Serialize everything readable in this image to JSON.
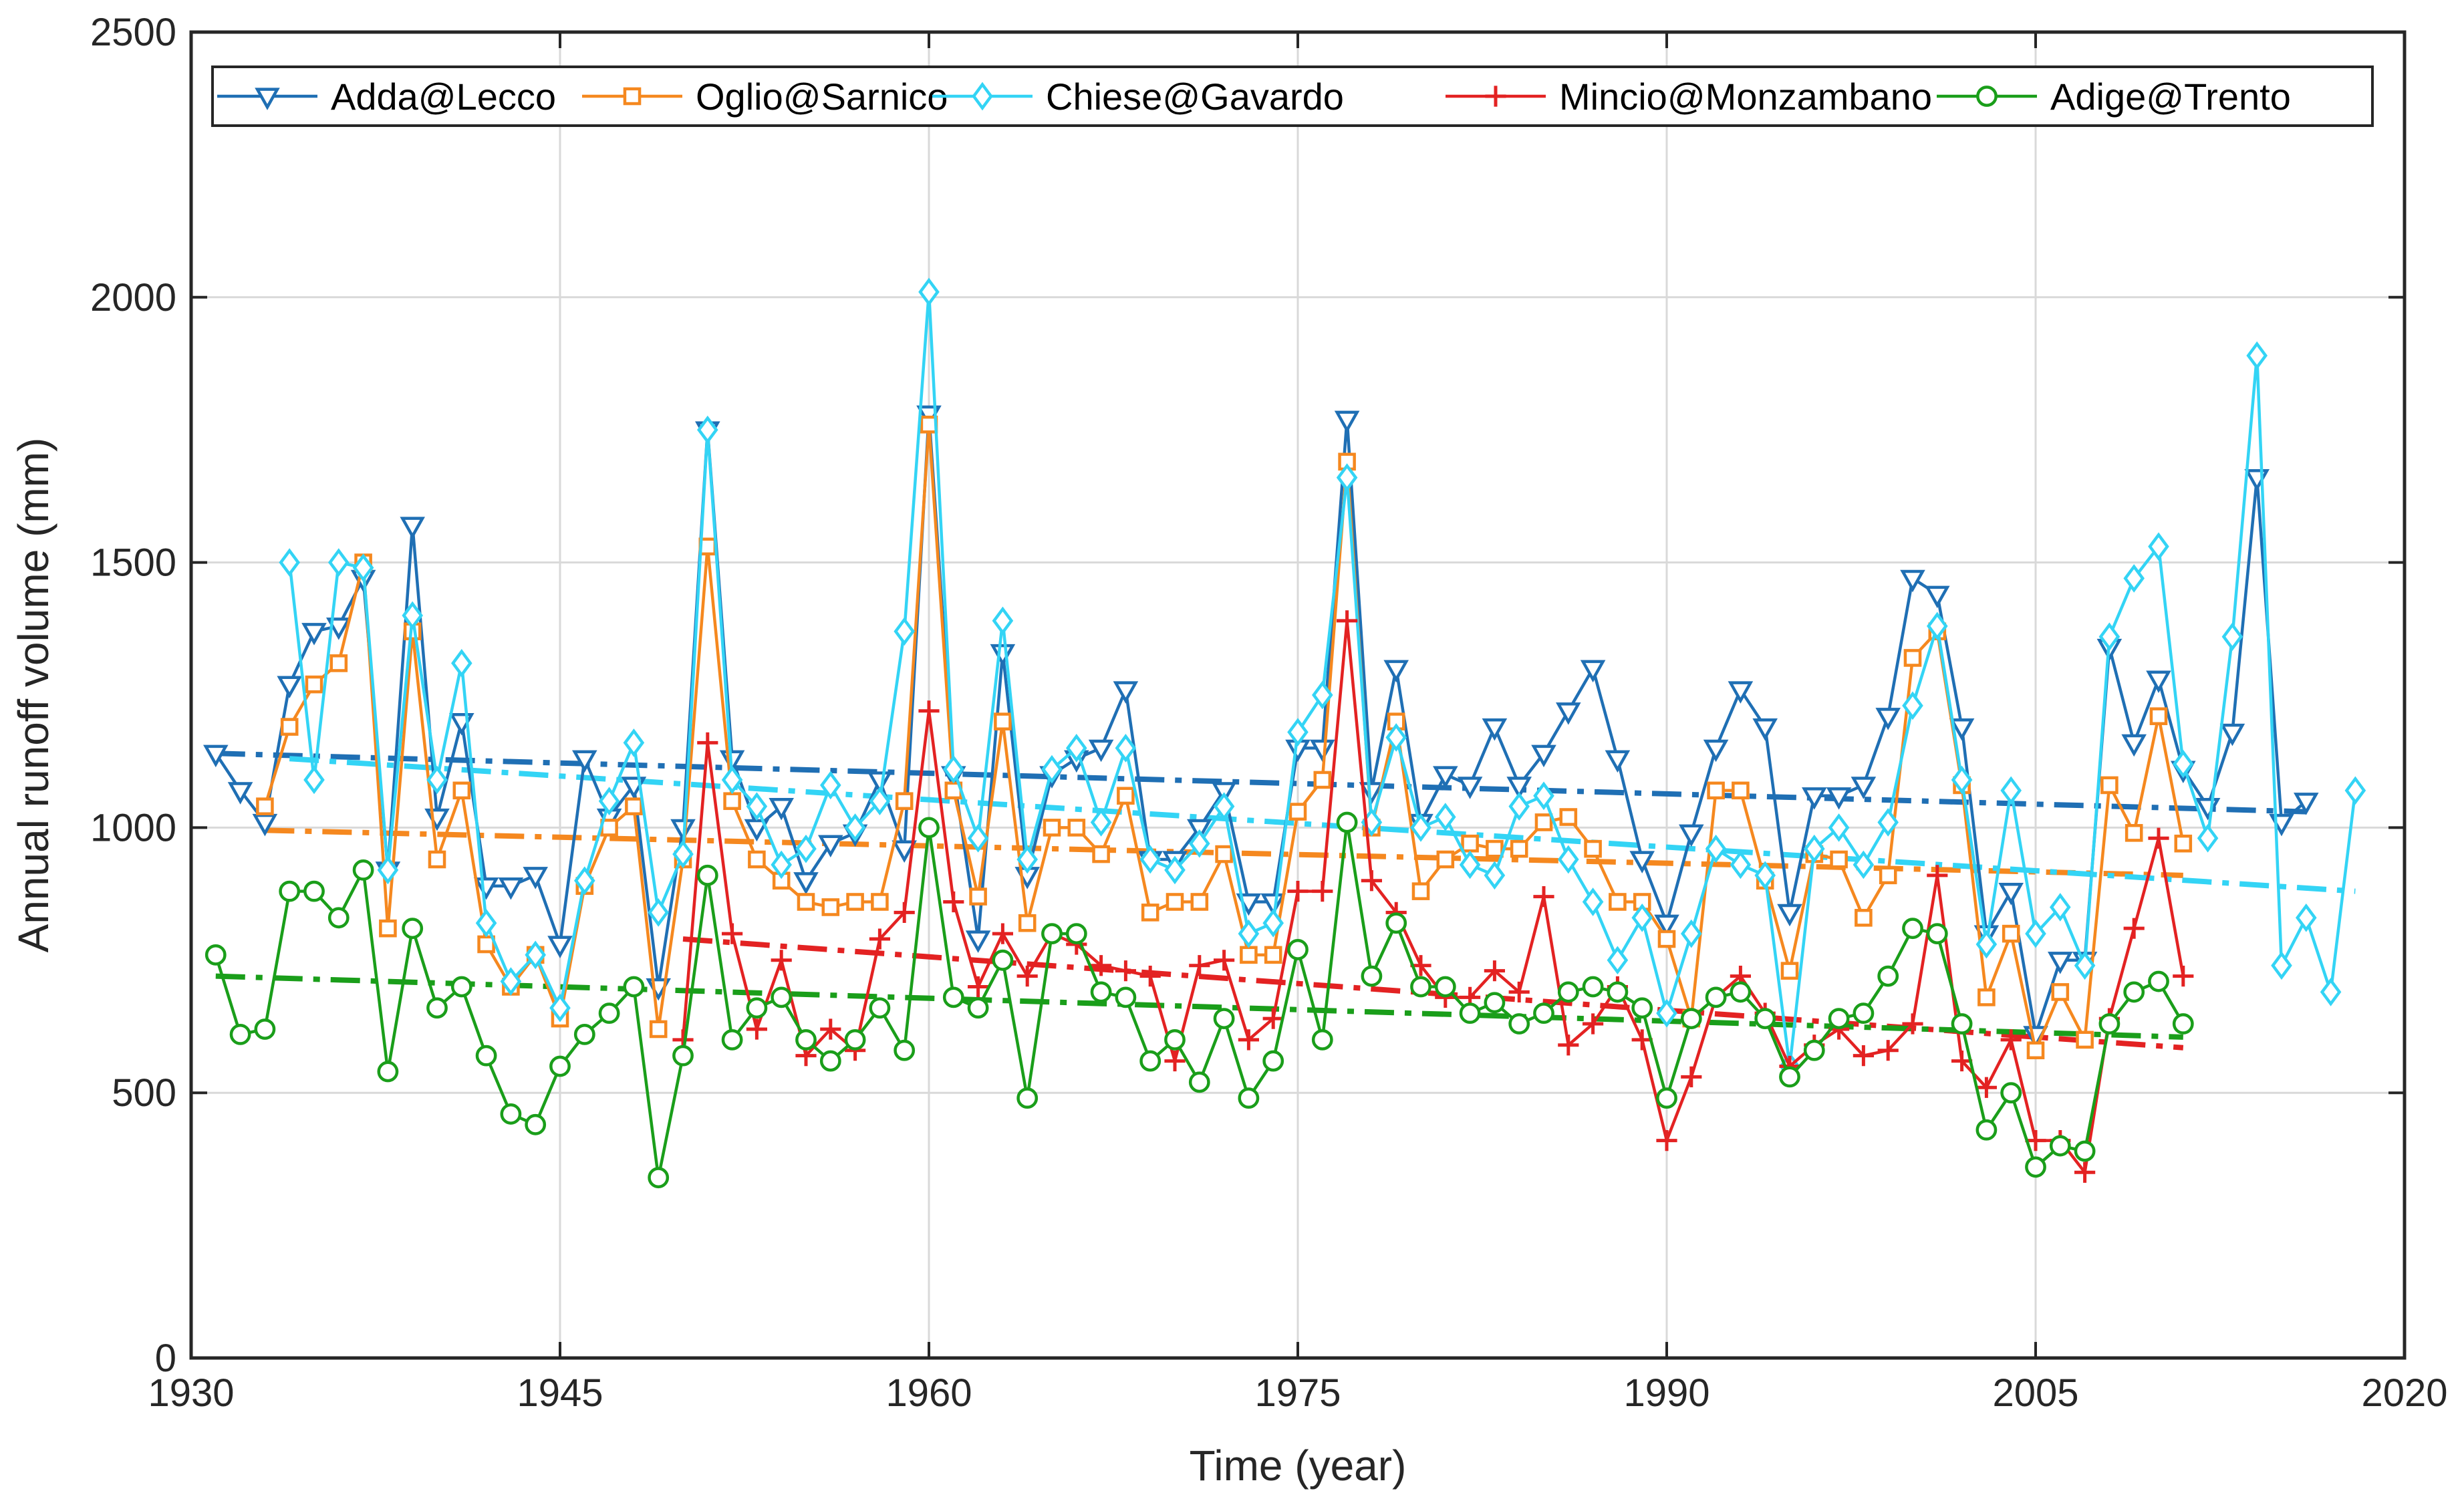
{
  "chart_data": {
    "type": "line",
    "title": "",
    "xlabel": "Time (year)",
    "ylabel": "Annual runoff volume (mm)",
    "xlim": [
      1930,
      2020
    ],
    "ylim": [
      0,
      2500
    ],
    "xticks": [
      1930,
      1945,
      1960,
      1975,
      1990,
      2005,
      2020
    ],
    "yticks": [
      0,
      500,
      1000,
      1500,
      2000,
      2500
    ],
    "xtick_labels": [
      "1930",
      "1945",
      "1960",
      "1975",
      "1990",
      "2005",
      "2020"
    ],
    "ytick_labels": [
      "0",
      "500",
      "1000",
      "1500",
      "2000",
      "2500"
    ],
    "grid": true,
    "legend_position": "top",
    "series": [
      {
        "name": "Adda@Lecco",
        "color": "#1f6fb4",
        "marker": "triangle-down",
        "x": [
          1931,
          1932,
          1933,
          1934,
          1935,
          1936,
          1937,
          1938,
          1939,
          1940,
          1941,
          1942,
          1943,
          1944,
          1945,
          1946,
          1947,
          1948,
          1949,
          1950,
          1951,
          1952,
          1953,
          1954,
          1955,
          1956,
          1957,
          1958,
          1959,
          1960,
          1961,
          1962,
          1963,
          1964,
          1965,
          1966,
          1967,
          1968,
          1969,
          1970,
          1971,
          1972,
          1973,
          1974,
          1975,
          1976,
          1977,
          1978,
          1979,
          1980,
          1981,
          1982,
          1983,
          1984,
          1985,
          1986,
          1987,
          1988,
          1989,
          1990,
          1991,
          1992,
          1993,
          1994,
          1995,
          1996,
          1997,
          1998,
          1999,
          2000,
          2001,
          2002,
          2003,
          2004,
          2005,
          2006,
          2007,
          2008,
          2009,
          2010,
          2011,
          2012,
          2013,
          2014,
          2015,
          2016
        ],
        "y": [
          1140,
          1070,
          1010,
          1270,
          1370,
          1380,
          1470,
          920,
          1570,
          1020,
          1200,
          890,
          890,
          910,
          780,
          1130,
          1020,
          1080,
          700,
          1000,
          1750,
          1130,
          1000,
          1040,
          900,
          970,
          990,
          1090,
          960,
          1780,
          1100,
          790,
          1330,
          910,
          1100,
          1130,
          1150,
          1260,
          940,
          940,
          1000,
          1070,
          860,
          860,
          1150,
          1150,
          1770,
          1070,
          1300,
          1010,
          1100,
          1080,
          1190,
          1080,
          1140,
          1220,
          1300,
          1130,
          940,
          820,
          990,
          1150,
          1260,
          1190,
          840,
          1060,
          1060,
          1080,
          1210,
          1470,
          1440,
          1190,
          800,
          880,
          610,
          750,
          750,
          1340,
          1160,
          1280,
          1110,
          1040,
          1180,
          1660,
          1010,
          1050
        ]
      },
      {
        "name": "Oglio@Sarnico",
        "color": "#f5881f",
        "marker": "square",
        "x": [
          1933,
          1934,
          1935,
          1936,
          1937,
          1938,
          1939,
          1940,
          1941,
          1942,
          1943,
          1944,
          1945,
          1946,
          1947,
          1948,
          1949,
          1950,
          1951,
          1952,
          1953,
          1954,
          1955,
          1956,
          1957,
          1958,
          1959,
          1960,
          1961,
          1962,
          1963,
          1964,
          1965,
          1966,
          1967,
          1968,
          1969,
          1970,
          1971,
          1972,
          1973,
          1974,
          1975,
          1976,
          1977,
          1978,
          1979,
          1980,
          1981,
          1982,
          1983,
          1984,
          1985,
          1986,
          1987,
          1988,
          1989,
          1990,
          1991,
          1992,
          1993,
          1994,
          1995,
          1996,
          1997,
          1998,
          1999,
          2000,
          2001,
          2002,
          2003,
          2004,
          2005,
          2006,
          2007,
          2008,
          2009,
          2010,
          2011
        ],
        "y": [
          1040,
          1190,
          1270,
          1310,
          1500,
          810,
          1370,
          940,
          1070,
          780,
          700,
          760,
          640,
          890,
          1000,
          1040,
          620,
          940,
          1530,
          1050,
          940,
          900,
          860,
          850,
          860,
          860,
          1050,
          1760,
          1070,
          870,
          1200,
          820,
          1000,
          1000,
          950,
          1060,
          840,
          860,
          860,
          950,
          760,
          760,
          1030,
          1090,
          1690,
          1000,
          1200,
          880,
          940,
          970,
          960,
          960,
          1010,
          1020,
          960,
          860,
          860,
          790,
          640,
          1070,
          1070,
          900,
          730,
          950,
          940,
          830,
          910,
          1320,
          1370,
          1080,
          680,
          800,
          580,
          690,
          600,
          1080,
          990,
          1210,
          970
        ]
      },
      {
        "name": "Chiese@Gavardo",
        "color": "#33d4f5",
        "marker": "diamond",
        "x": [
          1934,
          1935,
          1936,
          1937,
          1938,
          1939,
          1940,
          1941,
          1942,
          1943,
          1944,
          1945,
          1946,
          1947,
          1948,
          1949,
          1950,
          1951,
          1952,
          1953,
          1954,
          1955,
          1956,
          1957,
          1958,
          1959,
          1960,
          1961,
          1962,
          1963,
          1964,
          1965,
          1966,
          1967,
          1968,
          1969,
          1970,
          1971,
          1972,
          1973,
          1974,
          1975,
          1976,
          1977,
          1978,
          1979,
          1980,
          1981,
          1982,
          1983,
          1984,
          1985,
          1986,
          1987,
          1988,
          1989,
          1990,
          1991,
          1992,
          1993,
          1994,
          1995,
          1996,
          1997,
          1998,
          1999,
          2000,
          2001,
          2002,
          2003,
          2004,
          2005,
          2006,
          2007,
          2008,
          2009,
          2010,
          2011,
          2012,
          2013,
          2014,
          2015,
          2016,
          2017,
          2018
        ],
        "y": [
          1500,
          1090,
          1500,
          1490,
          920,
          1400,
          1090,
          1310,
          820,
          710,
          760,
          660,
          900,
          1050,
          1160,
          840,
          950,
          1750,
          1090,
          1040,
          930,
          960,
          1080,
          1000,
          1050,
          1370,
          2010,
          1110,
          980,
          1390,
          940,
          1110,
          1150,
          1010,
          1150,
          940,
          920,
          970,
          1040,
          800,
          820,
          1180,
          1250,
          1660,
          1010,
          1170,
          1000,
          1020,
          930,
          910,
          1040,
          1060,
          940,
          860,
          750,
          830,
          650,
          800,
          960,
          930,
          910,
          550,
          960,
          1000,
          930,
          1010,
          1230,
          1380,
          1090,
          780,
          1070,
          800,
          850,
          740,
          1360,
          1470,
          1530,
          1120,
          980,
          1360,
          1890,
          740,
          830,
          690,
          1070
        ]
      },
      {
        "name": "Mincio@Monzambano",
        "color": "#e32222",
        "marker": "plus",
        "x": [
          1950,
          1951,
          1952,
          1953,
          1954,
          1955,
          1956,
          1957,
          1958,
          1959,
          1960,
          1961,
          1962,
          1963,
          1964,
          1965,
          1966,
          1967,
          1968,
          1969,
          1970,
          1971,
          1972,
          1973,
          1974,
          1975,
          1976,
          1977,
          1978,
          1979,
          1980,
          1981,
          1982,
          1983,
          1984,
          1985,
          1986,
          1987,
          1988,
          1989,
          1990,
          1991,
          1992,
          1993,
          1994,
          1995,
          1996,
          1997,
          1998,
          1999,
          2000,
          2001,
          2002,
          2003,
          2004,
          2005,
          2006,
          2007,
          2008,
          2009,
          2010,
          2011
        ],
        "y": [
          600,
          1160,
          800,
          620,
          750,
          570,
          620,
          580,
          790,
          840,
          1220,
          860,
          700,
          800,
          720,
          800,
          780,
          740,
          730,
          720,
          560,
          740,
          750,
          600,
          640,
          880,
          880,
          1390,
          900,
          840,
          740,
          680,
          680,
          730,
          690,
          870,
          590,
          630,
          700,
          600,
          410,
          530,
          680,
          720,
          650,
          550,
          590,
          620,
          570,
          580,
          630,
          910,
          560,
          510,
          600,
          410,
          410,
          350,
          640,
          810,
          980,
          720
        ]
      },
      {
        "name": "Adige@Trento",
        "color": "#1a9e1a",
        "marker": "circle",
        "x": [
          1931,
          1932,
          1933,
          1934,
          1935,
          1936,
          1937,
          1938,
          1939,
          1940,
          1941,
          1942,
          1943,
          1944,
          1945,
          1946,
          1947,
          1948,
          1949,
          1950,
          1951,
          1952,
          1953,
          1954,
          1955,
          1956,
          1957,
          1958,
          1959,
          1960,
          1961,
          1962,
          1963,
          1964,
          1965,
          1966,
          1967,
          1968,
          1969,
          1970,
          1971,
          1972,
          1973,
          1974,
          1975,
          1976,
          1977,
          1978,
          1979,
          1980,
          1981,
          1982,
          1983,
          1984,
          1985,
          1986,
          1987,
          1988,
          1989,
          1990,
          1991,
          1992,
          1993,
          1994,
          1995,
          1996,
          1997,
          1998,
          1999,
          2000,
          2001,
          2002,
          2003,
          2004,
          2005,
          2006,
          2007,
          2008,
          2009,
          2010,
          2011
        ],
        "y": [
          760,
          610,
          620,
          880,
          880,
          830,
          920,
          540,
          810,
          660,
          700,
          570,
          460,
          440,
          550,
          610,
          650,
          700,
          340,
          570,
          910,
          600,
          660,
          680,
          600,
          560,
          600,
          660,
          580,
          1000,
          680,
          660,
          750,
          490,
          800,
          800,
          690,
          680,
          560,
          600,
          520,
          640,
          490,
          560,
          770,
          600,
          1010,
          720,
          820,
          700,
          700,
          650,
          670,
          630,
          650,
          690,
          700,
          690,
          660,
          490,
          640,
          680,
          690,
          640,
          530,
          580,
          640,
          650,
          720,
          810,
          800,
          630,
          430,
          500,
          360,
          400,
          390,
          630,
          690,
          710,
          630
        ]
      }
    ],
    "trend_lines": [
      {
        "series": "Adda@Lecco",
        "x": [
          1931,
          2016
        ],
        "y": [
          1140,
          1030
        ]
      },
      {
        "series": "Oglio@Sarnico",
        "x": [
          1933,
          2011
        ],
        "y": [
          995,
          910
        ]
      },
      {
        "series": "Chiese@Gavardo",
        "x": [
          1934,
          2018
        ],
        "y": [
          1130,
          880
        ]
      },
      {
        "series": "Mincio@Monzambano",
        "x": [
          1950,
          2011
        ],
        "y": [
          790,
          585
        ]
      },
      {
        "series": "Adige@Trento",
        "x": [
          1931,
          2011
        ],
        "y": [
          720,
          605
        ]
      }
    ]
  }
}
